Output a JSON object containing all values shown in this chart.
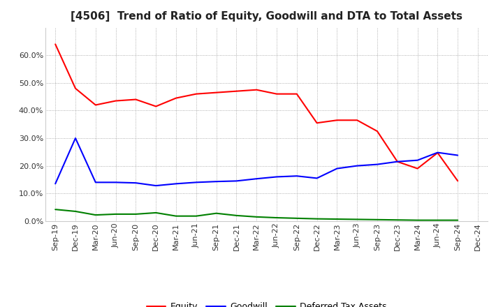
{
  "title": "[4506]  Trend of Ratio of Equity, Goodwill and DTA to Total Assets",
  "x_labels": [
    "Sep-19",
    "Dec-19",
    "Mar-20",
    "Jun-20",
    "Sep-20",
    "Dec-20",
    "Mar-21",
    "Jun-21",
    "Sep-21",
    "Dec-21",
    "Mar-22",
    "Jun-22",
    "Sep-22",
    "Dec-22",
    "Mar-23",
    "Jun-23",
    "Sep-23",
    "Dec-23",
    "Mar-24",
    "Jun-24",
    "Sep-24",
    "Dec-24"
  ],
  "equity": [
    0.64,
    0.48,
    0.42,
    0.435,
    0.44,
    0.415,
    0.445,
    0.46,
    0.465,
    0.47,
    0.475,
    0.46,
    0.46,
    0.355,
    0.365,
    0.365,
    0.325,
    0.215,
    0.19,
    0.247,
    0.145,
    null
  ],
  "goodwill": [
    0.135,
    0.3,
    0.14,
    0.14,
    0.138,
    0.128,
    0.135,
    0.14,
    0.143,
    0.145,
    0.153,
    0.16,
    0.163,
    0.155,
    0.19,
    0.2,
    0.205,
    0.215,
    0.22,
    0.248,
    0.238,
    null
  ],
  "dta": [
    0.042,
    0.035,
    0.022,
    0.025,
    0.025,
    0.03,
    0.018,
    0.018,
    0.028,
    0.02,
    0.015,
    0.012,
    0.01,
    0.008,
    0.007,
    0.006,
    0.005,
    0.004,
    0.003,
    0.003,
    0.003,
    null
  ],
  "equity_color": "#ff0000",
  "goodwill_color": "#0000ff",
  "dta_color": "#008000",
  "ylim": [
    0.0,
    0.7
  ],
  "ytick_vals": [
    0.0,
    0.1,
    0.2,
    0.3,
    0.4,
    0.5,
    0.6
  ],
  "ytick_labels": [
    "0.0%",
    "10.0%",
    "20.0%",
    "30.0%",
    "40.0%",
    "50.0%",
    "60.0%"
  ],
  "legend_labels": [
    "Equity",
    "Goodwill",
    "Deferred Tax Assets"
  ],
  "bg_color": "#ffffff",
  "grid_color": "#999999",
  "title_fontsize": 11,
  "tick_fontsize": 8,
  "legend_fontsize": 9,
  "linewidth": 1.5
}
